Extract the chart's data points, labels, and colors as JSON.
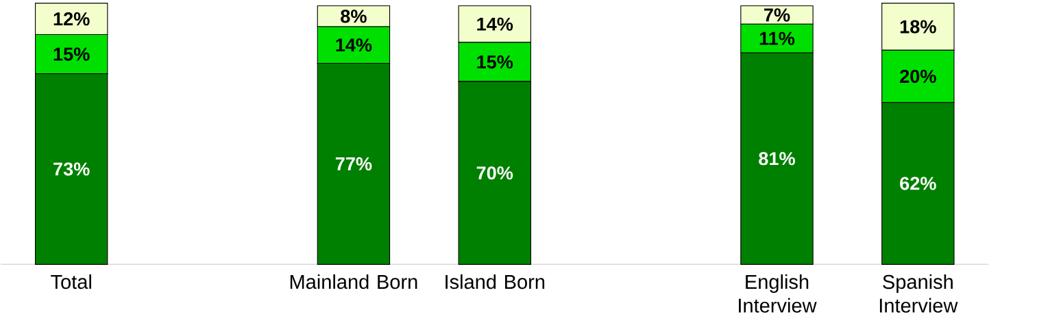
{
  "chart_data": {
    "type": "bar",
    "stacked": true,
    "categories": [
      "Total",
      null,
      "Mainland Born",
      "Island Born",
      null,
      "English Interview",
      "Spanish Interview"
    ],
    "series": [
      {
        "color": "#008000",
        "values": [
          73,
          null,
          77,
          70,
          null,
          81,
          62
        ],
        "value_labels": [
          "73%",
          null,
          "77%",
          "70%",
          null,
          "81%",
          "62%"
        ]
      },
      {
        "color": "#00e000",
        "values": [
          15,
          null,
          14,
          15,
          null,
          11,
          20
        ],
        "value_labels": [
          "15%",
          null,
          "14%",
          "15%",
          null,
          "11%",
          "20%"
        ]
      },
      {
        "color": "#f2ffcc",
        "values": [
          12,
          null,
          8,
          14,
          null,
          7,
          18
        ],
        "value_labels": [
          "12%",
          null,
          "8%",
          "14%",
          null,
          "7%",
          "18%"
        ]
      }
    ]
  }
}
